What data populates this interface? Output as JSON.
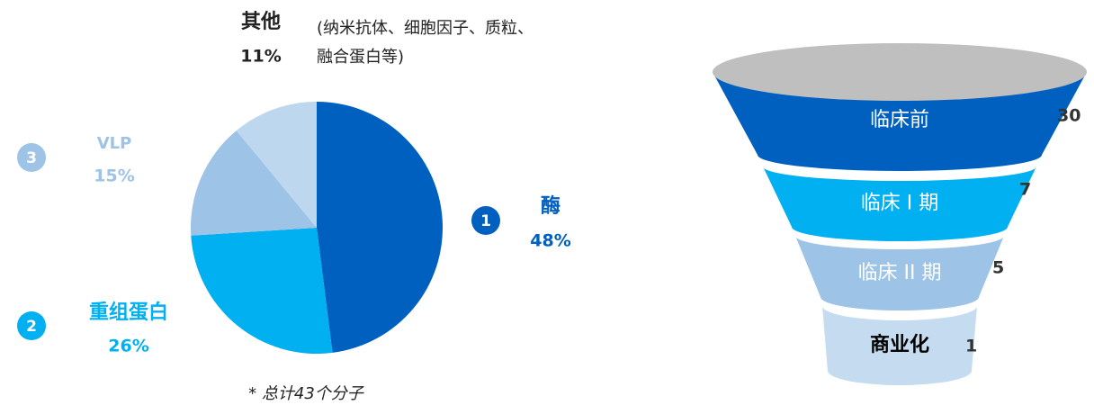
{
  "chart_data": [
    {
      "type": "pie",
      "categories": [
        "酶",
        "重组蛋白",
        "VLP",
        "其他"
      ],
      "values": [
        48,
        26,
        15,
        11
      ],
      "value_labels": [
        "48%",
        "26%",
        "15%",
        "11%"
      ],
      "colors": [
        "#0060c0",
        "#00b0f0",
        "#9dc3e6",
        "#bdd7ee"
      ],
      "badges": [
        1,
        2,
        3,
        null
      ],
      "note": [
        "(纳米抗体、细胞因子、质粒、",
        "融合蛋白等)"
      ],
      "footnote": "* 总计43个分子"
    },
    {
      "type": "funnel",
      "categories": [
        "临床前",
        "临床 I 期",
        "临床 II 期",
        "商业化"
      ],
      "values": [
        30,
        7,
        5,
        1
      ],
      "colors": [
        "#0060c0",
        "#00b0f0",
        "#9dc3e6",
        "#c5dcf0"
      ]
    }
  ]
}
